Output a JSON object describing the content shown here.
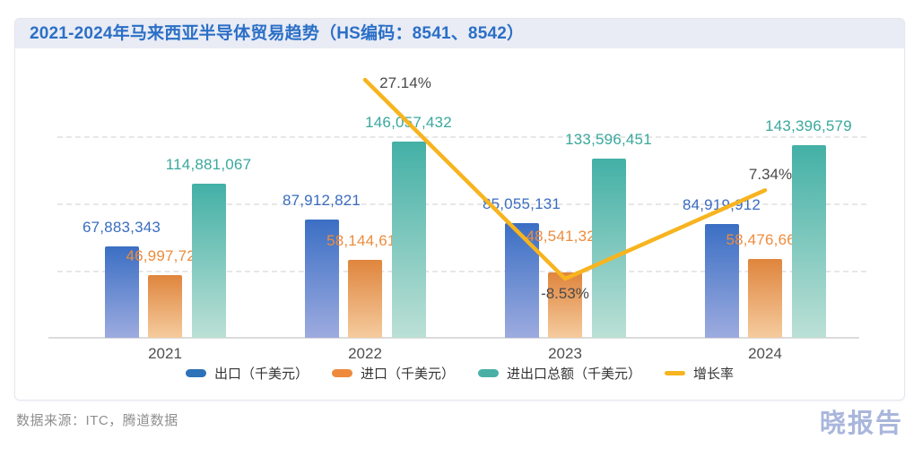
{
  "title": "2021-2024年马来西亚半导体贸易趋势（HS编码：8541、8542）",
  "footer": {
    "source": "数据来源：ITC，腾道数据",
    "logo": "晓报告"
  },
  "colors": {
    "title_text": "#2b6fc7",
    "title_bar_bg": "#e9ecf5",
    "export_blue": "#2e72b8",
    "import_orange": "#ee8a3c",
    "total_teal": "#4ab0a6",
    "growth_yellow": "#f5b31b",
    "logo_text": "#a9b6dc"
  },
  "chart_data": {
    "type": "bar",
    "categories": [
      "2021",
      "2022",
      "2023",
      "2024"
    ],
    "series": [
      {
        "key": "export",
        "name": "出口（千美元）",
        "type": "bar",
        "values": [
          67883343,
          87912821,
          85055131,
          84919912
        ],
        "color_top": "#3b6fc4",
        "color_bottom": "#9dabdf",
        "label_color": "#3a6cc0",
        "legend_color": "#2e72b8"
      },
      {
        "key": "import",
        "name": "进口（千美元）",
        "type": "bar",
        "values": [
          46997724,
          58144611,
          48541320,
          58476667
        ],
        "color_top": "#df853d",
        "color_bottom": "#f5cb9e",
        "label_color": "#ed8c3d",
        "legend_color": "#ee8a3c"
      },
      {
        "key": "total",
        "name": "进出口总额（千美元）",
        "type": "bar",
        "values": [
          114881067,
          146057432,
          133596451,
          143396579
        ],
        "color_top": "#43b0a6",
        "color_bottom": "#bce0d6",
        "label_color": "#3aa89d",
        "legend_color": "#4ab0a6"
      },
      {
        "key": "growth",
        "name": "增长率",
        "type": "line",
        "values": [
          null,
          27.14,
          -8.53,
          7.34
        ],
        "point_labels": [
          "",
          "27.14%",
          "-8.53%",
          "7.34%"
        ],
        "legend_color": "#f7b41f",
        "label_color": "#4a4a4a"
      }
    ],
    "ylim": [
      0,
      150000000
    ],
    "grid_values": [
      50000000,
      100000000,
      150000000
    ],
    "grid_style": "dashed",
    "legend_position": "bottom"
  }
}
